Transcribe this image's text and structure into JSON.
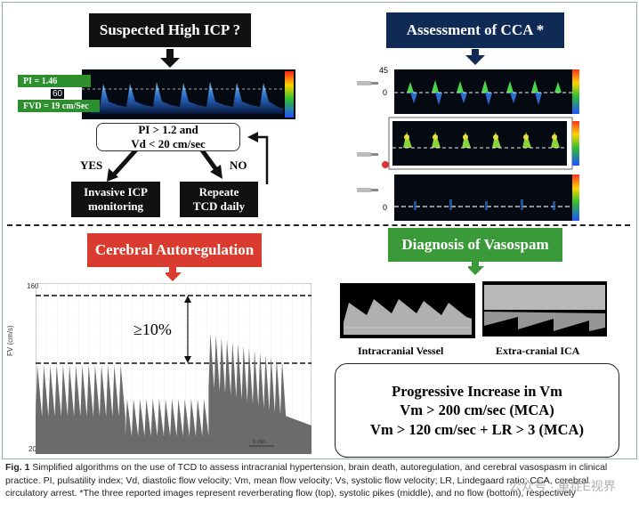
{
  "top_left": {
    "title": "Suspected High ICP ?",
    "pi_label": "PI = 1.46",
    "fvd_label": "FVD = 19 cm/Sec",
    "scale_60": "60",
    "criteria_line1": "PI > 1.2 and",
    "criteria_line2": "Vd < 20 cm/sec",
    "yes": "YES",
    "no": "NO",
    "invasive_line1": "Invasive ICP",
    "invasive_line2": "monitoring",
    "repeat_line1": "Repeate",
    "repeat_line2": "TCD daily"
  },
  "top_right": {
    "title": "Assessment of CCA *",
    "scale_45": "45",
    "scale_0a": "0",
    "scale_0c": "0"
  },
  "bottom_left": {
    "title": "Cerebral Autoregulation",
    "y_axis_label": "FV (cm/s)",
    "y_top": "160",
    "y_bottom": "20",
    "percent": "≥10%",
    "scale_bar": "5 min"
  },
  "bottom_right": {
    "title": "Diagnosis of Vasospam",
    "intracranial": "Intracranial Vessel",
    "extracranial": "Extra-cranial ICA",
    "box_line1": "Progressive Increase in Vm",
    "box_line2": "Vm > 200 cm/sec (MCA)",
    "box_line3": "Vm > 120 cm/sec + LR > 3 (MCA)"
  },
  "caption": {
    "fig": "Fig. 1",
    "text": " Simplified algorithms on the use of TCD to assess intracranial hypertension, brain death, autoregulation, and cerebral vasospasm in clinical practice. PI, pulsatility index; Vd, diastolic flow velocity; Vm, mean flow velocity; Vs, systolic flow velocity; LR, Lindegaard ratio; CCA, cerebral circulatory arrest. *The three reported images represent reverberating flow (top), systolic pikes (middle), and no flow (bottom), respectively"
  },
  "watermark": "公众号 · 重症E视界",
  "colors": {
    "navy": "#0f2b55",
    "red": "#d93b2e",
    "green": "#3a9a3a",
    "black": "#111111"
  }
}
